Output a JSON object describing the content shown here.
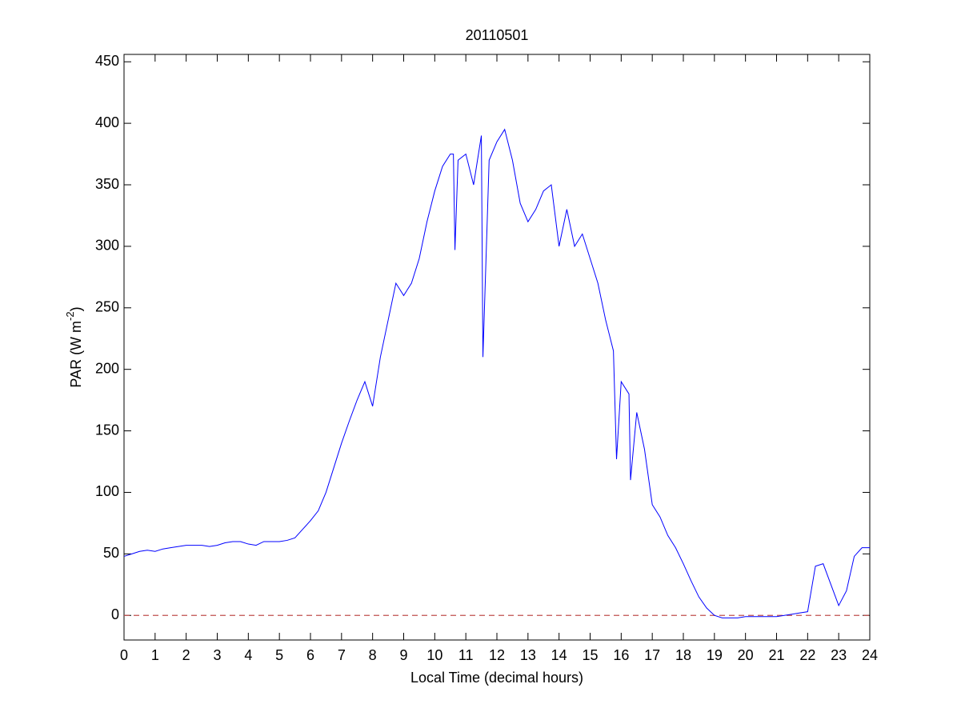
{
  "chart_data": {
    "type": "line",
    "title": "20110501",
    "xlabel": "Local Time (decimal hours)",
    "ylabel": {
      "text": "PAR (W m",
      "superscript": "-2",
      "suffix": ")"
    },
    "xlim": [
      0,
      24
    ],
    "ylim": [
      -20,
      456
    ],
    "xticks": [
      0,
      1,
      2,
      3,
      4,
      5,
      6,
      7,
      8,
      9,
      10,
      11,
      12,
      13,
      14,
      15,
      16,
      17,
      18,
      19,
      20,
      21,
      22,
      23,
      24
    ],
    "yticks": [
      0,
      50,
      100,
      150,
      200,
      250,
      300,
      350,
      400,
      450
    ],
    "grid": false,
    "reference_line": {
      "value": 0,
      "color": "#c0504d"
    },
    "x": [
      0,
      0.25,
      0.5,
      0.75,
      1,
      1.25,
      1.5,
      1.75,
      2,
      2.25,
      2.5,
      2.75,
      3,
      3.25,
      3.5,
      3.75,
      4,
      4.25,
      4.5,
      4.75,
      5,
      5.25,
      5.5,
      5.75,
      6,
      6.25,
      6.5,
      6.75,
      7,
      7.25,
      7.5,
      7.75,
      8,
      8.25,
      8.5,
      8.75,
      9,
      9.25,
      9.5,
      9.75,
      10,
      10.25,
      10.5,
      10.6,
      10.65,
      10.75,
      11,
      11.25,
      11.5,
      11.55,
      11.75,
      12,
      12.25,
      12.5,
      12.75,
      13,
      13.25,
      13.5,
      13.75,
      14,
      14.25,
      14.5,
      14.75,
      15,
      15.25,
      15.5,
      15.75,
      15.85,
      16,
      16.25,
      16.3,
      16.5,
      16.75,
      17,
      17.25,
      17.5,
      17.75,
      18,
      18.25,
      18.5,
      18.75,
      19,
      19.25,
      19.5,
      19.75,
      20,
      20.25,
      20.5,
      20.75,
      21,
      21.25,
      21.5,
      21.75,
      22,
      22.25,
      22.5,
      22.75,
      23,
      23.25,
      23.5,
      23.75,
      24
    ],
    "series": [
      {
        "name": "PAR",
        "color": "#0000ff",
        "values": [
          48,
          50,
          52,
          53,
          52,
          54,
          55,
          56,
          57,
          57,
          57,
          56,
          57,
          59,
          60,
          60,
          58,
          57,
          60,
          60,
          60,
          61,
          63,
          70,
          77,
          85,
          100,
          120,
          140,
          158,
          175,
          190,
          170,
          210,
          240,
          270,
          260,
          270,
          290,
          320,
          345,
          365,
          375,
          375,
          297,
          370,
          375,
          350,
          390,
          210,
          370,
          385,
          395,
          370,
          335,
          320,
          330,
          345,
          350,
          300,
          330,
          300,
          310,
          290,
          270,
          240,
          215,
          127,
          190,
          180,
          110,
          165,
          135,
          90,
          80,
          65,
          55,
          42,
          28,
          15,
          6,
          0,
          -2,
          -2,
          -2,
          -1,
          -1,
          -1,
          -1,
          -1,
          0,
          1,
          2,
          3,
          40,
          42,
          25,
          8,
          20,
          48,
          55,
          55
        ]
      }
    ]
  }
}
